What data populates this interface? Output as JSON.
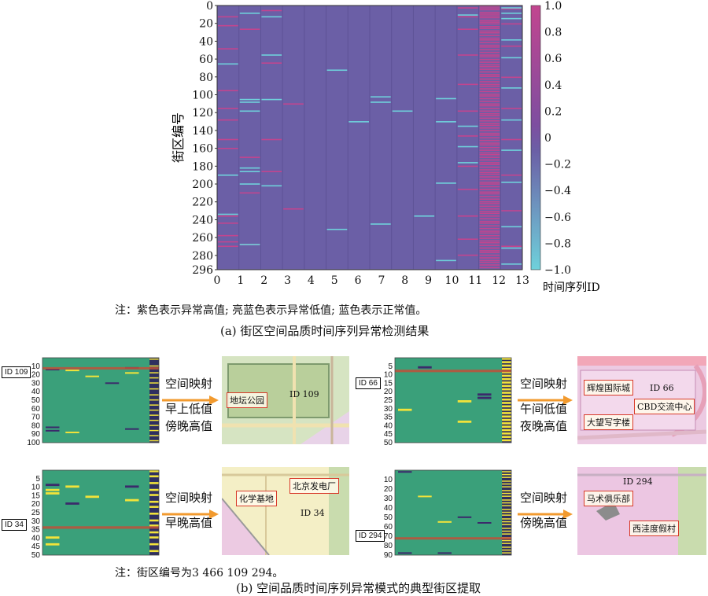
{
  "chart_data": [
    {
      "type": "heatmap",
      "ylabel": "街区编号",
      "xlabel": "",
      "x_ticks": [
        "0",
        "1",
        "2",
        "3",
        "4",
        "5",
        "6",
        "7",
        "8",
        "9",
        "10",
        "11",
        "12",
        "13"
      ],
      "y_ticks": [
        "0",
        "20",
        "40",
        "60",
        "80",
        "100",
        "120",
        "140",
        "160",
        "180",
        "200",
        "220",
        "240",
        "260",
        "280",
        "296"
      ],
      "y_range": [
        0,
        296
      ],
      "x_range": [
        0,
        13
      ],
      "colorbar": {
        "label": "时间序列ID",
        "ticks": [
          "1.0",
          "0.8",
          "0.6",
          "0.4",
          "0.2",
          "0",
          "−0.2",
          "−0.4",
          "−0.6",
          "−0.8",
          "−1.0"
        ],
        "range": [
          -1.0,
          1.0
        ]
      },
      "colors": {
        "background": "#6b5fa6",
        "high": "#c2458f",
        "low": "#6fd1db"
      },
      "high_rows": {
        "0": [
          12,
          22,
          48,
          95,
          115,
          128,
          150,
          160,
          236,
          244,
          258,
          265,
          270
        ],
        "1": [
          26,
          170,
          210,
          268
        ],
        "2": [
          5,
          64,
          150,
          186
        ],
        "3": [
          110,
          228
        ],
        "4": [],
        "5": [],
        "6": [],
        "7": [],
        "8": [],
        "9": [],
        "10": [],
        "11": [
          2,
          12,
          26,
          55,
          88,
          118,
          146,
          180,
          206,
          236,
          262,
          280
        ],
        "12": [
          0,
          2,
          4,
          7,
          9,
          11,
          13,
          16,
          18,
          20,
          23,
          25,
          28,
          30,
          33,
          36,
          38,
          41,
          44,
          46,
          49,
          52,
          55,
          57,
          60,
          63,
          66,
          68,
          71,
          74,
          77,
          79,
          82,
          85,
          88,
          90,
          93,
          96,
          99,
          101,
          104,
          107,
          110,
          112,
          115,
          118,
          121,
          123,
          126,
          129,
          132,
          134,
          137,
          140,
          143,
          145,
          148,
          151,
          154,
          156,
          159,
          162,
          165,
          167,
          170,
          173,
          176,
          178,
          181,
          184,
          187,
          189,
          192,
          195,
          198,
          200,
          203,
          206,
          209,
          211,
          214,
          217,
          220,
          222,
          225,
          228,
          231,
          233,
          236,
          239,
          242,
          244,
          247,
          250,
          253,
          255,
          258,
          261,
          264,
          266,
          269,
          272,
          275,
          277,
          280,
          283,
          286,
          288,
          291,
          294
        ],
        "13": [
          3,
          20,
          45,
          80,
          115,
          150,
          190,
          230,
          270
        ]
      },
      "low_rows": {
        "0": [
          65,
          190,
          234
        ],
        "1": [
          8,
          105,
          108,
          118,
          182,
          186,
          200,
          268
        ],
        "2": [
          12,
          55,
          105,
          202
        ],
        "3": [],
        "4": [],
        "5": [
          72,
          251
        ],
        "6": [
          130
        ],
        "7": [
          102,
          108,
          245
        ],
        "8": [
          118
        ],
        "9": [
          236
        ],
        "10": [
          104,
          130,
          199,
          286
        ],
        "11": [
          10,
          135,
          158,
          176
        ],
        "12": [],
        "13": [
          2,
          8,
          14,
          38,
          58,
          92,
          128,
          162,
          198,
          248,
          272,
          290
        ]
      }
    },
    {
      "type": "heatmap",
      "id_label": "ID 109",
      "y_ticks": [
        "10",
        "20",
        "30",
        "40",
        "50",
        "60",
        "70",
        "80",
        "90",
        "100"
      ],
      "y_range": [
        1,
        100
      ],
      "marker_row": 12,
      "colors": {
        "background": "#3aa07a",
        "high": "#f2e33a",
        "low": "#3b2a6b"
      },
      "cells": [
        [
          0,
          14,
          "low"
        ],
        [
          1,
          15,
          "high"
        ],
        [
          2,
          22,
          "high"
        ],
        [
          3,
          30,
          "low"
        ],
        [
          4,
          12,
          "low"
        ],
        [
          4,
          18,
          "high"
        ],
        [
          0,
          86,
          "low"
        ],
        [
          0,
          82,
          "low"
        ],
        [
          1,
          88,
          "high"
        ],
        [
          4,
          84,
          "low"
        ]
      ],
      "right_high_rows": [
        2,
        10,
        18,
        24,
        30,
        37,
        44,
        50,
        56,
        62,
        68,
        74,
        80,
        86,
        92,
        98
      ]
    },
    {
      "type": "heatmap",
      "id_label": "ID 66",
      "y_ticks": [
        "5",
        "10",
        "15",
        "20",
        "25",
        "30",
        "35",
        "40",
        "45",
        "50"
      ],
      "y_range": [
        1,
        50
      ],
      "marker_row": 8,
      "colors": {
        "background": "#3aa07a",
        "high": "#f2e33a",
        "low": "#3b2a6b"
      },
      "cells": [
        [
          1,
          6,
          "low"
        ],
        [
          4,
          24,
          "low"
        ],
        [
          3,
          26,
          "high"
        ],
        [
          3,
          38,
          "high"
        ],
        [
          0,
          31,
          "high"
        ],
        [
          4,
          22,
          "low"
        ]
      ],
      "right_high_rows": [
        1,
        3,
        5,
        7,
        9,
        11,
        13,
        15,
        17,
        19,
        21,
        23,
        25,
        27,
        29,
        31,
        33,
        35,
        37,
        39,
        41,
        43,
        45,
        47,
        49
      ]
    },
    {
      "type": "heatmap",
      "id_label": "ID 34",
      "y_ticks": [
        "5",
        "10",
        "15",
        "20",
        "25",
        "30",
        "35",
        "40",
        "45",
        "50"
      ],
      "y_range": [
        1,
        50
      ],
      "marker_row": 34,
      "colors": {
        "background": "#3aa07a",
        "high": "#f2e33a",
        "low": "#3b2a6b"
      },
      "cells": [
        [
          0,
          9,
          "low"
        ],
        [
          0,
          12,
          "high"
        ],
        [
          0,
          14,
          "high"
        ],
        [
          1,
          10,
          "high"
        ],
        [
          2,
          16,
          "high"
        ],
        [
          1,
          20,
          "low"
        ],
        [
          4,
          18,
          "high"
        ],
        [
          0,
          40,
          "high"
        ],
        [
          0,
          44,
          "high"
        ],
        [
          4,
          10,
          "low"
        ]
      ],
      "right_high_rows": [
        1,
        4,
        8,
        12,
        15,
        19,
        22,
        26,
        30,
        33,
        37,
        40,
        44,
        48
      ]
    },
    {
      "type": "heatmap",
      "id_label": "ID 294",
      "y_ticks": [
        "10",
        "20",
        "30",
        "40",
        "50",
        "60",
        "70",
        "80",
        "90"
      ],
      "y_range": [
        1,
        90
      ],
      "marker_row": 72,
      "colors": {
        "background": "#3aa07a",
        "high": "#f2e33a",
        "low": "#3b2a6b"
      },
      "cells": [
        [
          0,
          2,
          "low"
        ],
        [
          1,
          28,
          "high"
        ],
        [
          3,
          50,
          "low"
        ],
        [
          2,
          55,
          "high"
        ],
        [
          4,
          56,
          "low"
        ],
        [
          0,
          88,
          "low"
        ],
        [
          2,
          88,
          "low"
        ]
      ],
      "right_high_rows": [
        2,
        5,
        8,
        12,
        15,
        18,
        22,
        25,
        28,
        32,
        35,
        38,
        42,
        45,
        48,
        52,
        55,
        58,
        62,
        65,
        68,
        72,
        75,
        78,
        82,
        85,
        88
      ]
    }
  ],
  "note_a": "注：紫色表示异常高值; 亮蓝色表示异常低值; 蓝色表示正常值。",
  "caption_a": "(a) 街区空间品质时间序列异常检测结果",
  "note_b": "注：街区编号为3 466 109 294。",
  "caption_b": "(b) 空间品质时间序列异常模式的典型街区提取",
  "panels": [
    {
      "id_tag": "ID 109",
      "map_label": "ID 109",
      "arrow_top": "空间映射",
      "arrow_lines": [
        "早上低值",
        "傍晚高值"
      ],
      "places": [
        "地坛公园"
      ]
    },
    {
      "id_tag": "ID 66",
      "map_label": "ID 66",
      "arrow_top": "空间映射",
      "arrow_lines": [
        "午间低值",
        "夜晚高值"
      ],
      "places": [
        "辉煌国际城",
        "CBD交流中心",
        "大望写字楼"
      ]
    },
    {
      "id_tag": "ID 34",
      "map_label": "ID 34",
      "arrow_top": "空间映射",
      "arrow_lines": [
        "早晚高值"
      ],
      "places": [
        "北京发电厂",
        "化学基地"
      ]
    },
    {
      "id_tag": "ID 294",
      "map_label": "ID 294",
      "arrow_top": "空间映射",
      "arrow_lines": [
        "傍晚高值"
      ],
      "places": [
        "马术俱乐部",
        "西洼度假村"
      ]
    }
  ]
}
